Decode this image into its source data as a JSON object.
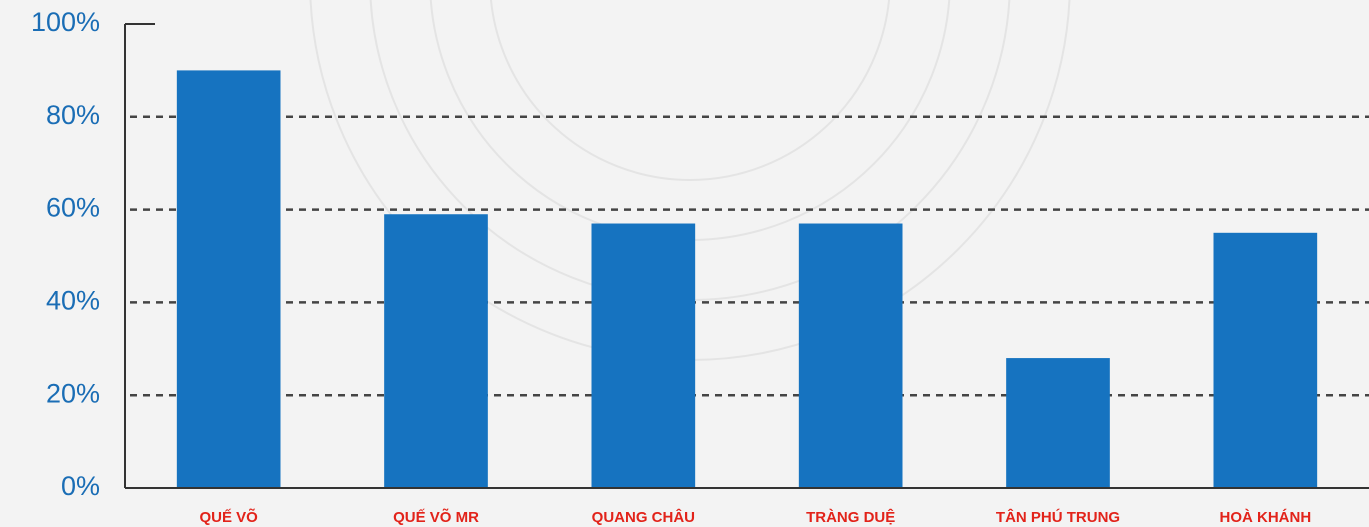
{
  "chart_data": {
    "type": "bar",
    "categories": [
      "QUẾ VÕ",
      "QUẾ VÕ MR",
      "QUANG CHÂU",
      "TRÀNG DUỆ",
      "TÂN PHÚ TRUNG",
      "HOÀ KHÁNH"
    ],
    "values": [
      90,
      59,
      57,
      57,
      28,
      55
    ],
    "color": "#1673c0",
    "ylim": [
      0,
      100
    ],
    "yticks": [
      {
        "value": 0,
        "label": "0%"
      },
      {
        "value": 20,
        "label": "20%"
      },
      {
        "value": 40,
        "label": "40%"
      },
      {
        "value": 60,
        "label": "60%"
      },
      {
        "value": 80,
        "label": "80%"
      },
      {
        "value": 100,
        "label": "100%"
      }
    ],
    "grid": true
  }
}
